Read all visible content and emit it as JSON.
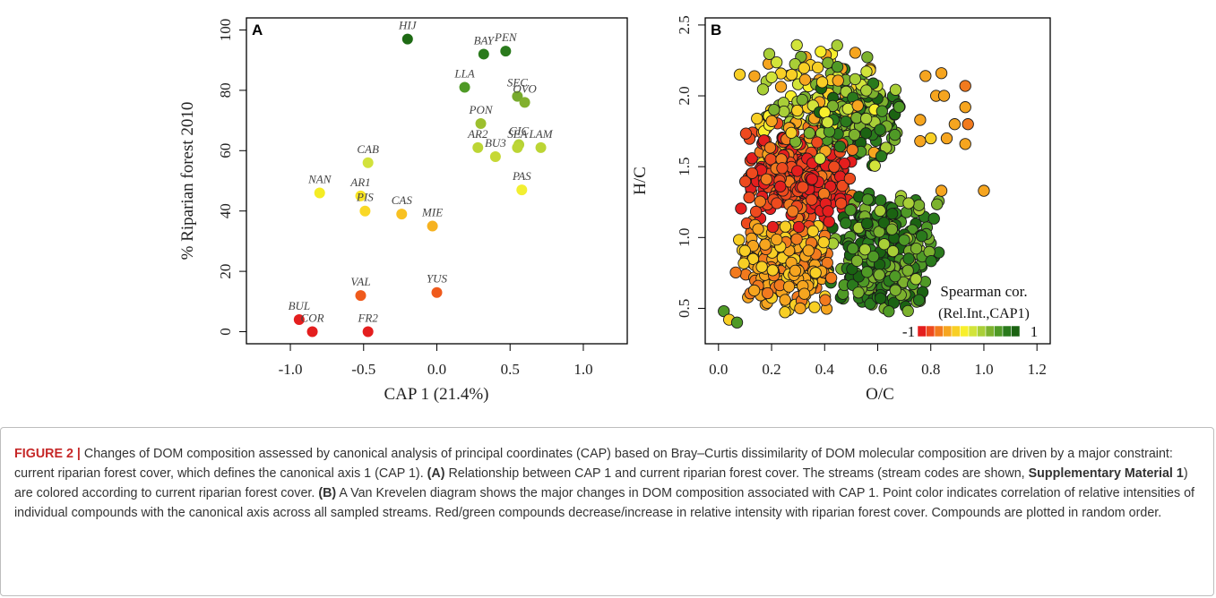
{
  "chart_data": [
    {
      "type": "scatter",
      "panel": "A",
      "xlabel": "CAP 1 (21.4%)",
      "ylabel": "% Riparian forest 2010",
      "xlim": [
        -1.3,
        1.3
      ],
      "ylim": [
        -4,
        104
      ],
      "xticks": [
        -1.0,
        -0.5,
        0.0,
        0.5,
        1.0
      ],
      "xtick_labels": [
        "-1.0",
        "-0.5",
        "0.0",
        "0.5",
        "1.0"
      ],
      "yticks": [
        0,
        20,
        40,
        60,
        80,
        100
      ],
      "ytick_labels": [
        "0",
        "20",
        "40",
        "60",
        "80",
        "100"
      ],
      "grid": false,
      "points": [
        {
          "label": "HIJ",
          "x": -0.2,
          "y": 97,
          "color": "#1e6a14"
        },
        {
          "label": "BAY",
          "x": 0.32,
          "y": 92,
          "color": "#2a7a1c"
        },
        {
          "label": "PEN",
          "x": 0.47,
          "y": 93,
          "color": "#2a7a1c"
        },
        {
          "label": "LLA",
          "x": 0.19,
          "y": 81,
          "color": "#4f9a26"
        },
        {
          "label": "SEC",
          "x": 0.55,
          "y": 78,
          "color": "#77aa2c"
        },
        {
          "label": "OVO",
          "x": 0.6,
          "y": 76,
          "color": "#82b02e"
        },
        {
          "label": "PON",
          "x": 0.3,
          "y": 69,
          "color": "#9cbf2e"
        },
        {
          "label": "AR2",
          "x": 0.28,
          "y": 61,
          "color": "#bcd534"
        },
        {
          "label": "BU3",
          "x": 0.4,
          "y": 58,
          "color": "#c6d835"
        },
        {
          "label": "GIC",
          "x": 0.56,
          "y": 62,
          "color": "#b5d236"
        },
        {
          "label": "SEA",
          "x": 0.55,
          "y": 61,
          "color": "#bcd534"
        },
        {
          "label": "LAM",
          "x": 0.71,
          "y": 61,
          "color": "#bcd534"
        },
        {
          "label": "CAB",
          "x": -0.47,
          "y": 56,
          "color": "#d2e23c"
        },
        {
          "label": "PAS",
          "x": 0.58,
          "y": 47,
          "color": "#f2ef31"
        },
        {
          "label": "NAN",
          "x": -0.8,
          "y": 46,
          "color": "#f4ec25"
        },
        {
          "label": "AR1",
          "x": -0.52,
          "y": 45,
          "color": "#f8e424"
        },
        {
          "label": "PIS",
          "x": -0.49,
          "y": 40,
          "color": "#f9d826"
        },
        {
          "label": "CAS",
          "x": -0.24,
          "y": 39,
          "color": "#f8c122"
        },
        {
          "label": "MIE",
          "x": -0.03,
          "y": 35,
          "color": "#f6b220"
        },
        {
          "label": "VAL",
          "x": -0.52,
          "y": 12,
          "color": "#ef5a1c"
        },
        {
          "label": "YUS",
          "x": 0.0,
          "y": 13,
          "color": "#ef5a1c"
        },
        {
          "label": "BUL",
          "x": -0.94,
          "y": 4,
          "color": "#e41e1e"
        },
        {
          "label": "COR",
          "x": -0.85,
          "y": 0,
          "color": "#e41e1e"
        },
        {
          "label": "FR2",
          "x": -0.47,
          "y": 0,
          "color": "#e41e1e"
        }
      ]
    },
    {
      "type": "scatter",
      "panel": "B",
      "xlabel": "O/C",
      "ylabel": "H/C",
      "xlim": [
        -0.05,
        1.25
      ],
      "ylim": [
        0.25,
        2.55
      ],
      "xticks": [
        0.0,
        0.2,
        0.4,
        0.6,
        0.8,
        1.0,
        1.2
      ],
      "xtick_labels": [
        "0.0",
        "0.2",
        "0.4",
        "0.6",
        "0.8",
        "1.0",
        "1.2"
      ],
      "yticks": [
        0.5,
        1.0,
        1.5,
        2.0,
        2.5
      ],
      "ytick_labels": [
        "0.5",
        "1.0",
        "1.5",
        "2.0",
        "2.5"
      ],
      "grid": false,
      "legend": {
        "title": "Spearman cor.",
        "subtitle": "(Rel.Int.,CAP1)",
        "min_label": "-1",
        "max_label": "1",
        "placement": "bottom-right",
        "colors": [
          "#e41e1e",
          "#ee4a1e",
          "#f27a1e",
          "#f6a51f",
          "#f8cf25",
          "#f8ef2c",
          "#d2e43a",
          "#a9cf37",
          "#7cb22e",
          "#4f9a26",
          "#2a7a1c",
          "#1b6312"
        ]
      },
      "regions": [
        {
          "name": "red-core",
          "x": [
            0.08,
            0.52
          ],
          "y": [
            1.02,
            1.82
          ],
          "r_range": [
            -1.0,
            -0.55
          ]
        },
        {
          "name": "orange-low",
          "x": [
            0.05,
            0.45
          ],
          "y": [
            0.45,
            1.15
          ],
          "r_range": [
            -0.65,
            -0.2
          ]
        },
        {
          "name": "green-right",
          "x": [
            0.4,
            0.85
          ],
          "y": [
            0.45,
            1.35
          ],
          "r_range": [
            0.3,
            1.0
          ]
        },
        {
          "name": "green-upper",
          "x": [
            0.35,
            0.7
          ],
          "y": [
            1.5,
            2.25
          ],
          "r_range": [
            0.25,
            1.0
          ]
        },
        {
          "name": "mixed-band",
          "x": [
            0.1,
            0.65
          ],
          "y": [
            1.45,
            2.4
          ],
          "r_range": [
            -0.5,
            0.5
          ]
        }
      ],
      "outliers": [
        {
          "x": 1.0,
          "y": 1.33,
          "r": -0.45
        },
        {
          "x": 0.93,
          "y": 2.07,
          "r": -0.6
        },
        {
          "x": 0.84,
          "y": 2.16,
          "r": -0.5
        },
        {
          "x": 0.78,
          "y": 2.14,
          "r": -0.4
        },
        {
          "x": 0.82,
          "y": 2.0,
          "r": -0.4
        },
        {
          "x": 0.85,
          "y": 2.0,
          "r": -0.35
        },
        {
          "x": 0.93,
          "y": 1.92,
          "r": -0.5
        },
        {
          "x": 0.94,
          "y": 1.8,
          "r": -0.55
        },
        {
          "x": 0.89,
          "y": 1.8,
          "r": -0.4
        },
        {
          "x": 0.76,
          "y": 1.83,
          "r": -0.45
        },
        {
          "x": 0.8,
          "y": 1.7,
          "r": -0.3
        },
        {
          "x": 0.86,
          "y": 1.7,
          "r": -0.35
        },
        {
          "x": 0.93,
          "y": 1.66,
          "r": -0.45
        },
        {
          "x": 0.76,
          "y": 1.68,
          "r": -0.5
        },
        {
          "x": 0.84,
          "y": 1.33,
          "r": -0.4
        },
        {
          "x": 0.08,
          "y": 2.15,
          "r": -0.2
        },
        {
          "x": 0.02,
          "y": 0.48,
          "r": 0.5
        },
        {
          "x": 0.04,
          "y": 0.42,
          "r": -0.3
        },
        {
          "x": 0.07,
          "y": 0.4,
          "r": 0.6
        }
      ]
    }
  ],
  "panels": {
    "a_letter": "A",
    "b_letter": "B"
  },
  "caption": {
    "figure_label": "FIGURE 2 |",
    "text1": " Changes of DOM composition assessed by canonical analysis of principal coordinates (CAP) based on Bray–Curtis dissimilarity of DOM molecular composition are driven by a major constraint: current riparian forest cover, which defines the canonical axis 1 (CAP 1). ",
    "a_ref": "(A)",
    "text2": " Relationship between CAP 1 and current riparian forest cover. The streams (stream codes are shown, ",
    "supp_ref": "Supplementary Material 1",
    "text3": ") are colored according to current riparian forest cover. ",
    "b_ref": "(B)",
    "text4": " A Van Krevelen diagram shows the major changes in DOM composition associated with CAP 1. Point color indicates correlation of relative intensities of individual compounds with the canonical axis across all sampled streams. Red/green compounds decrease/increase in relative intensity with riparian forest cover. Compounds are plotted in random order."
  }
}
